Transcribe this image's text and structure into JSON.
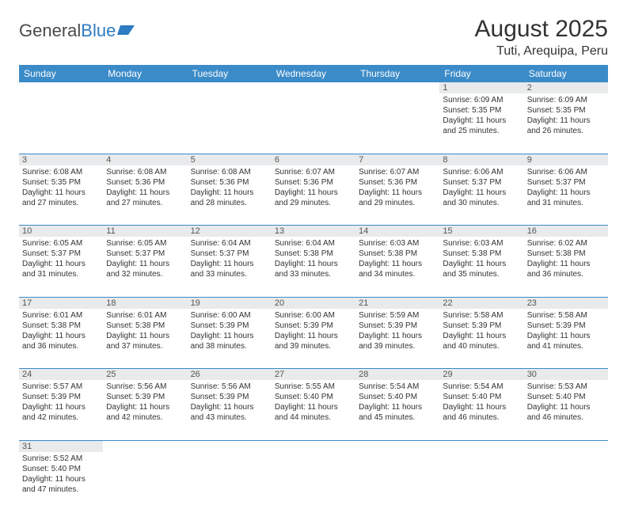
{
  "logo": {
    "text1": "General",
    "text2": "Blue"
  },
  "title": "August 2025",
  "location": "Tuti, Arequipa, Peru",
  "colors": {
    "header_bg": "#3b8bc8",
    "header_text": "#ffffff",
    "daynum_bg": "#e8eaec",
    "border": "#3b8bc8",
    "text": "#333333",
    "logo_gray": "#4a4a4a",
    "logo_blue": "#2d7bc0"
  },
  "weekdays": [
    "Sunday",
    "Monday",
    "Tuesday",
    "Wednesday",
    "Thursday",
    "Friday",
    "Saturday"
  ],
  "weeks": [
    [
      null,
      null,
      null,
      null,
      null,
      {
        "n": "1",
        "sunrise": "Sunrise: 6:09 AM",
        "sunset": "Sunset: 5:35 PM",
        "dl1": "Daylight: 11 hours",
        "dl2": "and 25 minutes."
      },
      {
        "n": "2",
        "sunrise": "Sunrise: 6:09 AM",
        "sunset": "Sunset: 5:35 PM",
        "dl1": "Daylight: 11 hours",
        "dl2": "and 26 minutes."
      }
    ],
    [
      {
        "n": "3",
        "sunrise": "Sunrise: 6:08 AM",
        "sunset": "Sunset: 5:35 PM",
        "dl1": "Daylight: 11 hours",
        "dl2": "and 27 minutes."
      },
      {
        "n": "4",
        "sunrise": "Sunrise: 6:08 AM",
        "sunset": "Sunset: 5:36 PM",
        "dl1": "Daylight: 11 hours",
        "dl2": "and 27 minutes."
      },
      {
        "n": "5",
        "sunrise": "Sunrise: 6:08 AM",
        "sunset": "Sunset: 5:36 PM",
        "dl1": "Daylight: 11 hours",
        "dl2": "and 28 minutes."
      },
      {
        "n": "6",
        "sunrise": "Sunrise: 6:07 AM",
        "sunset": "Sunset: 5:36 PM",
        "dl1": "Daylight: 11 hours",
        "dl2": "and 29 minutes."
      },
      {
        "n": "7",
        "sunrise": "Sunrise: 6:07 AM",
        "sunset": "Sunset: 5:36 PM",
        "dl1": "Daylight: 11 hours",
        "dl2": "and 29 minutes."
      },
      {
        "n": "8",
        "sunrise": "Sunrise: 6:06 AM",
        "sunset": "Sunset: 5:37 PM",
        "dl1": "Daylight: 11 hours",
        "dl2": "and 30 minutes."
      },
      {
        "n": "9",
        "sunrise": "Sunrise: 6:06 AM",
        "sunset": "Sunset: 5:37 PM",
        "dl1": "Daylight: 11 hours",
        "dl2": "and 31 minutes."
      }
    ],
    [
      {
        "n": "10",
        "sunrise": "Sunrise: 6:05 AM",
        "sunset": "Sunset: 5:37 PM",
        "dl1": "Daylight: 11 hours",
        "dl2": "and 31 minutes."
      },
      {
        "n": "11",
        "sunrise": "Sunrise: 6:05 AM",
        "sunset": "Sunset: 5:37 PM",
        "dl1": "Daylight: 11 hours",
        "dl2": "and 32 minutes."
      },
      {
        "n": "12",
        "sunrise": "Sunrise: 6:04 AM",
        "sunset": "Sunset: 5:37 PM",
        "dl1": "Daylight: 11 hours",
        "dl2": "and 33 minutes."
      },
      {
        "n": "13",
        "sunrise": "Sunrise: 6:04 AM",
        "sunset": "Sunset: 5:38 PM",
        "dl1": "Daylight: 11 hours",
        "dl2": "and 33 minutes."
      },
      {
        "n": "14",
        "sunrise": "Sunrise: 6:03 AM",
        "sunset": "Sunset: 5:38 PM",
        "dl1": "Daylight: 11 hours",
        "dl2": "and 34 minutes."
      },
      {
        "n": "15",
        "sunrise": "Sunrise: 6:03 AM",
        "sunset": "Sunset: 5:38 PM",
        "dl1": "Daylight: 11 hours",
        "dl2": "and 35 minutes."
      },
      {
        "n": "16",
        "sunrise": "Sunrise: 6:02 AM",
        "sunset": "Sunset: 5:38 PM",
        "dl1": "Daylight: 11 hours",
        "dl2": "and 36 minutes."
      }
    ],
    [
      {
        "n": "17",
        "sunrise": "Sunrise: 6:01 AM",
        "sunset": "Sunset: 5:38 PM",
        "dl1": "Daylight: 11 hours",
        "dl2": "and 36 minutes."
      },
      {
        "n": "18",
        "sunrise": "Sunrise: 6:01 AM",
        "sunset": "Sunset: 5:38 PM",
        "dl1": "Daylight: 11 hours",
        "dl2": "and 37 minutes."
      },
      {
        "n": "19",
        "sunrise": "Sunrise: 6:00 AM",
        "sunset": "Sunset: 5:39 PM",
        "dl1": "Daylight: 11 hours",
        "dl2": "and 38 minutes."
      },
      {
        "n": "20",
        "sunrise": "Sunrise: 6:00 AM",
        "sunset": "Sunset: 5:39 PM",
        "dl1": "Daylight: 11 hours",
        "dl2": "and 39 minutes."
      },
      {
        "n": "21",
        "sunrise": "Sunrise: 5:59 AM",
        "sunset": "Sunset: 5:39 PM",
        "dl1": "Daylight: 11 hours",
        "dl2": "and 39 minutes."
      },
      {
        "n": "22",
        "sunrise": "Sunrise: 5:58 AM",
        "sunset": "Sunset: 5:39 PM",
        "dl1": "Daylight: 11 hours",
        "dl2": "and 40 minutes."
      },
      {
        "n": "23",
        "sunrise": "Sunrise: 5:58 AM",
        "sunset": "Sunset: 5:39 PM",
        "dl1": "Daylight: 11 hours",
        "dl2": "and 41 minutes."
      }
    ],
    [
      {
        "n": "24",
        "sunrise": "Sunrise: 5:57 AM",
        "sunset": "Sunset: 5:39 PM",
        "dl1": "Daylight: 11 hours",
        "dl2": "and 42 minutes."
      },
      {
        "n": "25",
        "sunrise": "Sunrise: 5:56 AM",
        "sunset": "Sunset: 5:39 PM",
        "dl1": "Daylight: 11 hours",
        "dl2": "and 42 minutes."
      },
      {
        "n": "26",
        "sunrise": "Sunrise: 5:56 AM",
        "sunset": "Sunset: 5:39 PM",
        "dl1": "Daylight: 11 hours",
        "dl2": "and 43 minutes."
      },
      {
        "n": "27",
        "sunrise": "Sunrise: 5:55 AM",
        "sunset": "Sunset: 5:40 PM",
        "dl1": "Daylight: 11 hours",
        "dl2": "and 44 minutes."
      },
      {
        "n": "28",
        "sunrise": "Sunrise: 5:54 AM",
        "sunset": "Sunset: 5:40 PM",
        "dl1": "Daylight: 11 hours",
        "dl2": "and 45 minutes."
      },
      {
        "n": "29",
        "sunrise": "Sunrise: 5:54 AM",
        "sunset": "Sunset: 5:40 PM",
        "dl1": "Daylight: 11 hours",
        "dl2": "and 46 minutes."
      },
      {
        "n": "30",
        "sunrise": "Sunrise: 5:53 AM",
        "sunset": "Sunset: 5:40 PM",
        "dl1": "Daylight: 11 hours",
        "dl2": "and 46 minutes."
      }
    ],
    [
      {
        "n": "31",
        "sunrise": "Sunrise: 5:52 AM",
        "sunset": "Sunset: 5:40 PM",
        "dl1": "Daylight: 11 hours",
        "dl2": "and 47 minutes."
      },
      null,
      null,
      null,
      null,
      null,
      null
    ]
  ]
}
